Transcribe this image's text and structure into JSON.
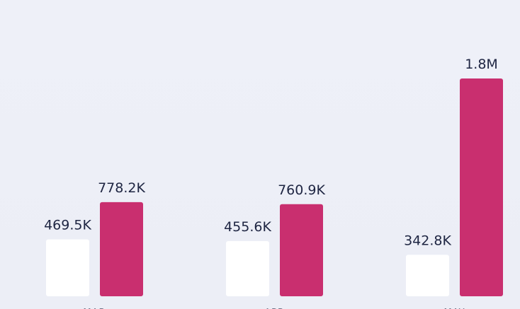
{
  "chart_data": {
    "type": "bar",
    "categories": [
      "MAR",
      "APR",
      "MAY"
    ],
    "series": [
      {
        "color": "#ffffff",
        "values": [
          469500,
          455600,
          342800
        ],
        "value_labels": [
          "469.5K",
          "455.6K",
          "342.8K"
        ]
      },
      {
        "color": "#c92f6f",
        "values": [
          778200,
          760900,
          1800000
        ],
        "value_labels": [
          "778.2K",
          "760.9K",
          "1.8M"
        ]
      }
    ]
  }
}
